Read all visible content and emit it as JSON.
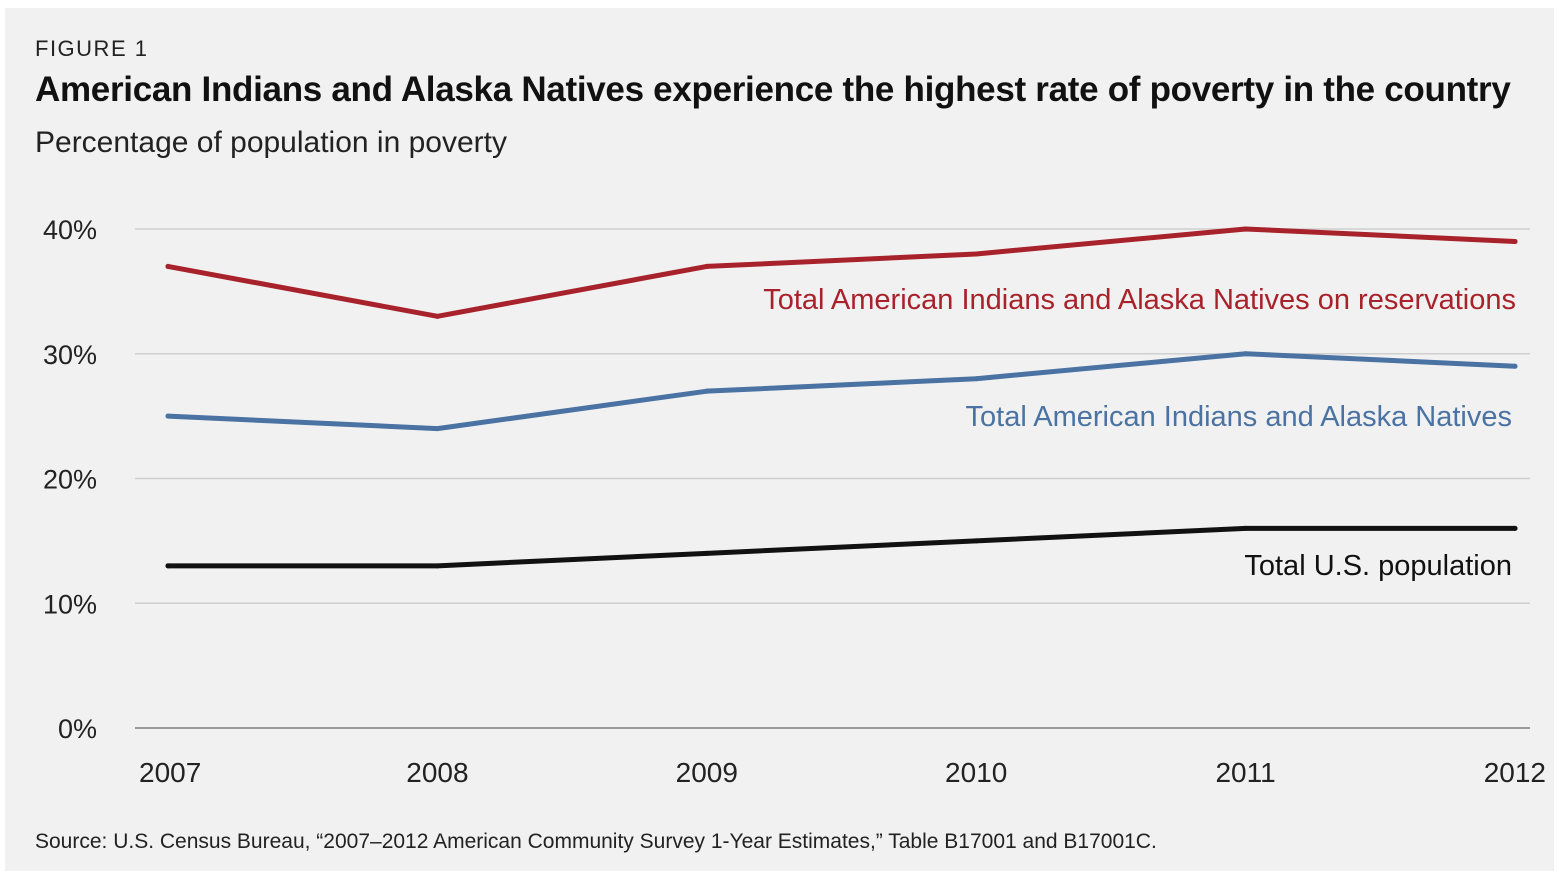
{
  "figure": {
    "label": "FIGURE 1",
    "title": "American Indians and Alaska Natives experience the highest rate of poverty in the country",
    "subtitle": "Percentage of population in poverty",
    "source": "Source: U.S. Census Bureau, “2007–2012 American Community Survey 1-Year Estimates,” Table B17001 and B17001C."
  },
  "chart_data": {
    "type": "line",
    "x": [
      2007,
      2008,
      2009,
      2010,
      2011,
      2012
    ],
    "x_tick_labels": [
      "2007",
      "2008",
      "2009",
      "2010",
      "2011",
      "2012"
    ],
    "ylim": [
      0,
      40
    ],
    "y_ticks": [
      0,
      10,
      20,
      30,
      40
    ],
    "y_tick_labels": [
      "0%",
      "10%",
      "20%",
      "30%",
      "40%"
    ],
    "grid": true,
    "series": [
      {
        "name": "Total American Indians and Alaska Natives on reservations",
        "color": "#a8222b",
        "values": [
          37,
          33,
          37,
          38,
          40,
          39
        ]
      },
      {
        "name": "Total American Indians and Alaska Natives",
        "color": "#4a72a2",
        "values": [
          25,
          24,
          27,
          28,
          30,
          29
        ]
      },
      {
        "name": "Total U.S. population",
        "color": "#111111",
        "values": [
          13,
          13,
          14,
          15,
          16,
          16
        ]
      }
    ]
  }
}
